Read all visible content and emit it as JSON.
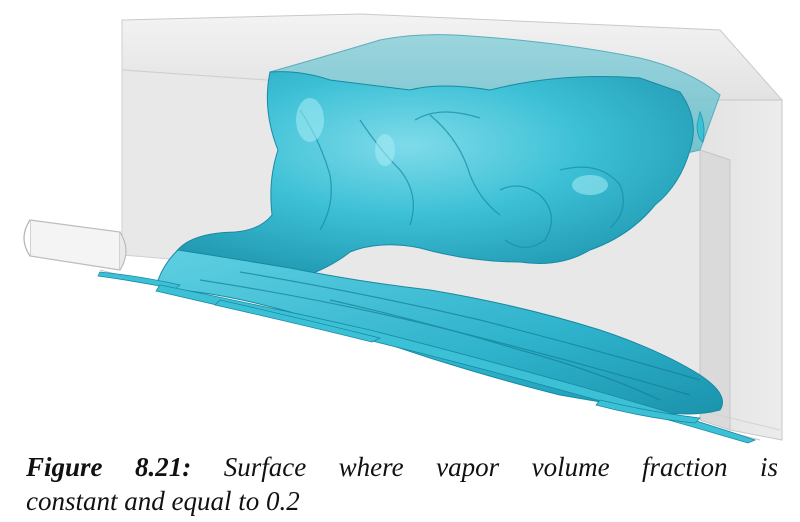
{
  "figure": {
    "label": "Figure 8.21:",
    "caption_line1": "Surface where vapor volume fraction is",
    "caption_line2": "constant and equal to 0.2",
    "colors": {
      "vapor_surface": "#3cc0d6",
      "vapor_surface_shadow": "#1f97b0",
      "vapor_surface_highlight": "#8fe3ef",
      "geometry": "#e6e6e6",
      "geometry_edge": "#bdbdbd"
    }
  }
}
